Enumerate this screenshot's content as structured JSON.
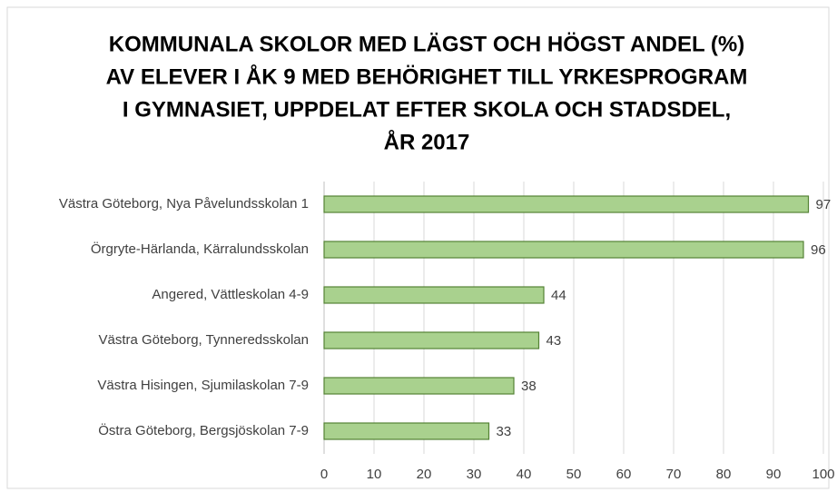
{
  "chart_data": {
    "type": "barh",
    "title": [
      "KOMMUNALA SKOLOR MED LÄGST OCH HÖGST ANDEL (%)",
      "AV ELEVER I ÅK 9 MED BEHÖRIGHET TILL YRKESPROGRAM",
      "I GYMNASIET, UPPDELAT EFTER SKOLA OCH STADSDEL,",
      "ÅR 2017"
    ],
    "categories": [
      "Västra Göteborg, Nya Påvelundsskolan 1",
      "Örgryte-Härlanda, Kärralundsskolan",
      "Angered, Vättleskolan 4-9",
      "Västra Göteborg, Tynneredsskolan",
      "Västra Hisingen, Sjumilaskolan 7-9",
      "Östra Göteborg, Bergsjöskolan 7-9"
    ],
    "values": [
      97,
      96,
      44,
      43,
      38,
      33
    ],
    "color": "#a9d18e",
    "edge_color": "#548235",
    "xlim": [
      0,
      100
    ],
    "xticks": [
      0,
      10,
      20,
      30,
      40,
      50,
      60,
      70,
      80,
      90,
      100
    ],
    "grid": true
  }
}
